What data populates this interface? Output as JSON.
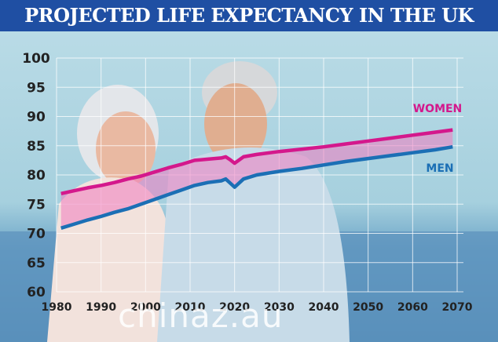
{
  "colors": {
    "banner": "#1f4fa3",
    "women": "#d4188c",
    "men": "#1b6fb5"
  },
  "watermark": "chinaz.au",
  "chart_data": {
    "type": "line",
    "title": "PROJECTED LIFE EXPECTANCY IN THE UK",
    "xlabel": "",
    "ylabel": "",
    "xlim": [
      1980,
      2070
    ],
    "ylim": [
      60,
      100
    ],
    "xticks": [
      1980,
      1990,
      2000,
      2010,
      2020,
      2030,
      2040,
      2050,
      2060,
      2070
    ],
    "yticks": [
      60,
      65,
      70,
      75,
      80,
      85,
      90,
      95,
      100
    ],
    "grid": true,
    "fill_between_series": true,
    "series": [
      {
        "name": "WOMEN",
        "color": "#d4188c",
        "x": [
          1981,
          1984,
          1987,
          1990,
          1993,
          1996,
          1999,
          2002,
          2005,
          2008,
          2011,
          2014,
          2017,
          2018,
          2019,
          2020,
          2022,
          2025,
          2030,
          2035,
          2040,
          2045,
          2050,
          2055,
          2060,
          2065,
          2069
        ],
        "y": [
          76.8,
          77.3,
          77.8,
          78.2,
          78.7,
          79.3,
          79.8,
          80.5,
          81.2,
          81.8,
          82.5,
          82.7,
          82.9,
          83.1,
          82.6,
          82.0,
          83.1,
          83.5,
          84.0,
          84.4,
          84.8,
          85.3,
          85.8,
          86.3,
          86.8,
          87.3,
          87.7
        ]
      },
      {
        "name": "MEN",
        "color": "#1b6fb5",
        "x": [
          1981,
          1984,
          1987,
          1990,
          1993,
          1996,
          1999,
          2002,
          2005,
          2008,
          2011,
          2014,
          2017,
          2018,
          2019,
          2020,
          2022,
          2025,
          2030,
          2035,
          2040,
          2045,
          2050,
          2055,
          2060,
          2065,
          2069
        ],
        "y": [
          70.9,
          71.6,
          72.3,
          72.9,
          73.6,
          74.2,
          75.0,
          75.8,
          76.6,
          77.4,
          78.2,
          78.7,
          79.0,
          79.3,
          78.6,
          77.9,
          79.3,
          80.0,
          80.6,
          81.1,
          81.7,
          82.3,
          82.8,
          83.3,
          83.8,
          84.3,
          84.8
        ]
      }
    ]
  }
}
